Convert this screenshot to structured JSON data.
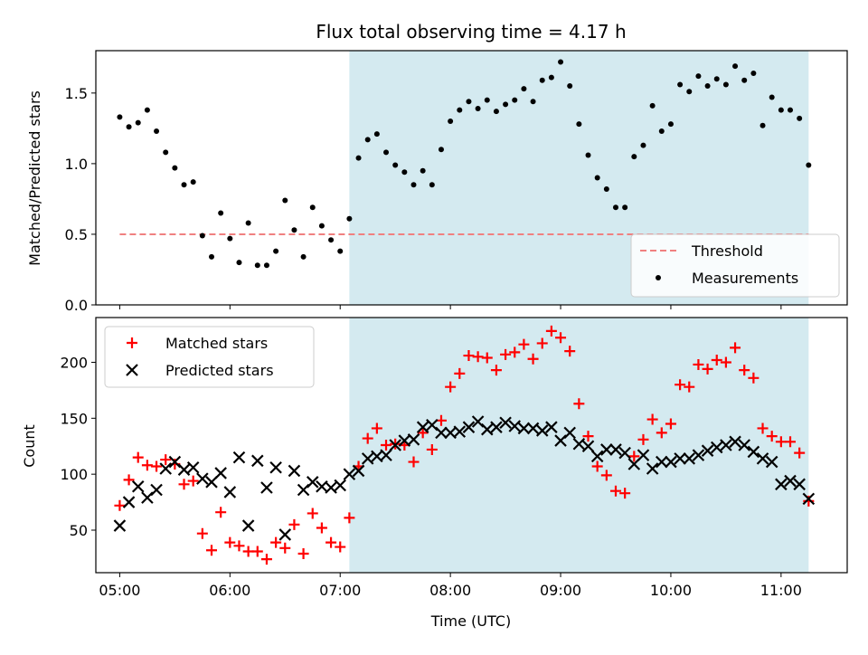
{
  "chart_data": {
    "title": "Flux total observing time = 4.17 h",
    "shaded_region": {
      "start": "07:05",
      "end": "11:15",
      "color": "#d4eaf0"
    },
    "x_axis": {
      "label": "Time (UTC)",
      "range": [
        "04:47",
        "11:36"
      ],
      "ticks": [
        "05:00",
        "06:00",
        "07:00",
        "08:00",
        "09:00",
        "10:00",
        "11:00"
      ]
    },
    "panels": [
      {
        "type": "scatter",
        "ylabel": "Matched/Predicted stars",
        "ylim": [
          0.0,
          1.8
        ],
        "yticks": [
          "0.0",
          "0.5",
          "1.0",
          "1.5"
        ],
        "legend": {
          "placement": "lower-right",
          "entries": [
            "Threshold",
            "Measurements"
          ]
        },
        "series": [
          {
            "name": "Threshold",
            "style": "dashed-line",
            "color": "#f08080",
            "x": [
              "05:00",
              "11:15"
            ],
            "y": [
              0.5,
              0.5
            ]
          },
          {
            "name": "Measurements",
            "style": "dot",
            "color": "#000000",
            "x": [
              "05:00",
              "05:05",
              "05:10",
              "05:15",
              "05:20",
              "05:25",
              "05:30",
              "05:35",
              "05:40",
              "05:45",
              "05:50",
              "05:55",
              "06:00",
              "06:05",
              "06:10",
              "06:15",
              "06:20",
              "06:25",
              "06:30",
              "06:35",
              "06:40",
              "06:45",
              "06:50",
              "06:55",
              "07:00",
              "07:05",
              "07:10",
              "07:15",
              "07:20",
              "07:25",
              "07:30",
              "07:35",
              "07:40",
              "07:45",
              "07:50",
              "07:55",
              "08:00",
              "08:05",
              "08:10",
              "08:15",
              "08:20",
              "08:25",
              "08:30",
              "08:35",
              "08:40",
              "08:45",
              "08:50",
              "08:55",
              "09:00",
              "09:05",
              "09:10",
              "09:15",
              "09:20",
              "09:25",
              "09:30",
              "09:35",
              "09:40",
              "09:45",
              "09:50",
              "09:55",
              "10:00",
              "10:05",
              "10:10",
              "10:15",
              "10:20",
              "10:25",
              "10:30",
              "10:35",
              "10:40",
              "10:45",
              "10:50",
              "10:55",
              "11:00",
              "11:05",
              "11:10",
              "11:15"
            ],
            "y": [
              1.33,
              1.26,
              1.29,
              1.38,
              1.23,
              1.08,
              0.97,
              0.85,
              0.87,
              0.49,
              0.34,
              0.65,
              0.47,
              0.3,
              0.58,
              0.28,
              0.28,
              0.38,
              0.74,
              0.53,
              0.34,
              0.69,
              0.56,
              0.46,
              0.38,
              0.61,
              1.04,
              1.17,
              1.21,
              1.08,
              0.99,
              0.94,
              0.85,
              0.95,
              0.85,
              1.1,
              1.3,
              1.38,
              1.44,
              1.39,
              1.45,
              1.37,
              1.42,
              1.45,
              1.53,
              1.44,
              1.59,
              1.61,
              1.72,
              1.55,
              1.28,
              1.06,
              0.9,
              0.82,
              0.69,
              0.69,
              1.05,
              1.13,
              1.41,
              1.23,
              1.28,
              1.56,
              1.51,
              1.62,
              1.55,
              1.6,
              1.56,
              1.69,
              1.59,
              1.64,
              1.27,
              1.47,
              1.38,
              1.38,
              1.32,
              0.99
            ]
          }
        ]
      },
      {
        "type": "scatter",
        "ylabel": "Count",
        "ylim": [
          12,
          240
        ],
        "yticks": [
          "50",
          "100",
          "150",
          "200"
        ],
        "legend": {
          "placement": "top-left",
          "entries": [
            "Matched stars",
            "Predicted stars"
          ]
        },
        "series": [
          {
            "name": "Matched stars",
            "marker": "plus",
            "color": "#ff0000",
            "x": [
              "05:00",
              "05:05",
              "05:10",
              "05:15",
              "05:20",
              "05:25",
              "05:30",
              "05:35",
              "05:40",
              "05:45",
              "05:50",
              "05:55",
              "06:00",
              "06:05",
              "06:10",
              "06:15",
              "06:20",
              "06:25",
              "06:30",
              "06:35",
              "06:40",
              "06:45",
              "06:50",
              "06:55",
              "07:00",
              "07:05",
              "07:10",
              "07:15",
              "07:20",
              "07:25",
              "07:30",
              "07:35",
              "07:40",
              "07:45",
              "07:50",
              "07:55",
              "08:00",
              "08:05",
              "08:10",
              "08:15",
              "08:20",
              "08:25",
              "08:30",
              "08:35",
              "08:40",
              "08:45",
              "08:50",
              "08:55",
              "09:00",
              "09:05",
              "09:10",
              "09:15",
              "09:20",
              "09:25",
              "09:30",
              "09:35",
              "09:40",
              "09:45",
              "09:50",
              "09:55",
              "10:00",
              "10:05",
              "10:10",
              "10:15",
              "10:20",
              "10:25",
              "10:30",
              "10:35",
              "10:40",
              "10:45",
              "10:50",
              "10:55",
              "11:00",
              "11:05",
              "11:10",
              "11:15"
            ],
            "y": [
              72,
              95,
              115,
              108,
              107,
              113,
              109,
              91,
              94,
              47,
              32,
              66,
              39,
              36,
              31,
              31,
              24,
              39,
              34,
              55,
              29,
              65,
              52,
              39,
              35,
              61,
              107,
              132,
              141,
              126,
              127,
              126,
              111,
              137,
              122,
              148,
              178,
              190,
              206,
              205,
              204,
              193,
              207,
              209,
              216,
              203,
              217,
              228,
              222,
              210,
              163,
              134,
              107,
              99,
              85,
              83,
              116,
              131,
              149,
              137,
              145,
              180,
              178,
              198,
              194,
              202,
              200,
              213,
              193,
              186,
              141,
              134,
              129,
              129,
              119,
              76
            ]
          },
          {
            "name": "Predicted stars",
            "marker": "x",
            "color": "#000000",
            "x": [
              "05:00",
              "05:05",
              "05:10",
              "05:15",
              "05:20",
              "05:25",
              "05:30",
              "05:35",
              "05:40",
              "05:45",
              "05:50",
              "05:55",
              "06:00",
              "06:05",
              "06:10",
              "06:15",
              "06:20",
              "06:25",
              "06:30",
              "06:35",
              "06:40",
              "06:45",
              "06:50",
              "06:55",
              "07:00",
              "07:05",
              "07:10",
              "07:15",
              "07:20",
              "07:25",
              "07:30",
              "07:35",
              "07:40",
              "07:45",
              "07:50",
              "07:55",
              "08:00",
              "08:05",
              "08:10",
              "08:15",
              "08:20",
              "08:25",
              "08:30",
              "08:35",
              "08:40",
              "08:45",
              "08:50",
              "08:55",
              "09:00",
              "09:05",
              "09:10",
              "09:15",
              "09:20",
              "09:25",
              "09:30",
              "09:35",
              "09:40",
              "09:45",
              "09:50",
              "09:55",
              "10:00",
              "10:05",
              "10:10",
              "10:15",
              "10:20",
              "10:25",
              "10:30",
              "10:35",
              "10:40",
              "10:45",
              "10:50",
              "10:55",
              "11:00",
              "11:05",
              "11:10",
              "11:15"
            ],
            "y": [
              54,
              75,
              89,
              79,
              86,
              105,
              111,
              104,
              106,
              96,
              93,
              101,
              84,
              115,
              54,
              112,
              88,
              106,
              46,
              103,
              86,
              93,
              89,
              88,
              90,
              100,
              103,
              114,
              116,
              117,
              126,
              130,
              131,
              142,
              144,
              137,
              137,
              138,
              142,
              147,
              140,
              142,
              146,
              143,
              141,
              141,
              139,
              142,
              130,
              137,
              127,
              125,
              116,
              122,
              122,
              119,
              109,
              117,
              105,
              111,
              111,
              114,
              114,
              117,
              121,
              124,
              126,
              129,
              126,
              120,
              114,
              111,
              91,
              94,
              91,
              78
            ]
          }
        ]
      }
    ]
  }
}
